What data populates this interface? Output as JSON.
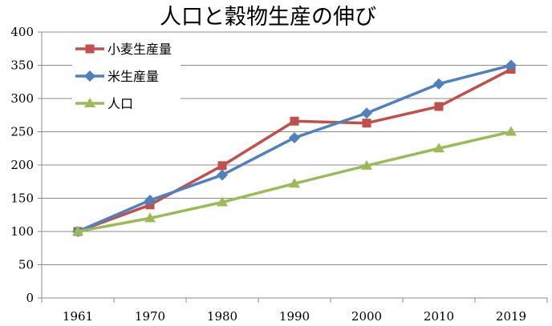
{
  "chart_data": {
    "type": "line",
    "title": "人口と穀物生産の伸び",
    "xlabel": "",
    "ylabel": "",
    "categories": [
      "1961",
      "1970",
      "1980",
      "1990",
      "2000",
      "2010",
      "2019"
    ],
    "ylim": [
      0,
      400
    ],
    "yticks": [
      0,
      50,
      100,
      150,
      200,
      250,
      300,
      350,
      400
    ],
    "grid": "horizontal",
    "legend_position": "top-left",
    "series": [
      {
        "name": "小麦生産量",
        "color": "#c0504d",
        "marker": "square",
        "values": [
          100,
          140,
          199,
          266,
          263,
          288,
          344
        ]
      },
      {
        "name": "米生産量",
        "color": "#4f81bd",
        "marker": "diamond",
        "values": [
          100,
          147,
          185,
          241,
          278,
          322,
          350
        ]
      },
      {
        "name": "人口",
        "color": "#9bbb59",
        "marker": "triangle",
        "values": [
          100,
          120,
          144,
          172,
          199,
          225,
          250
        ]
      }
    ]
  }
}
